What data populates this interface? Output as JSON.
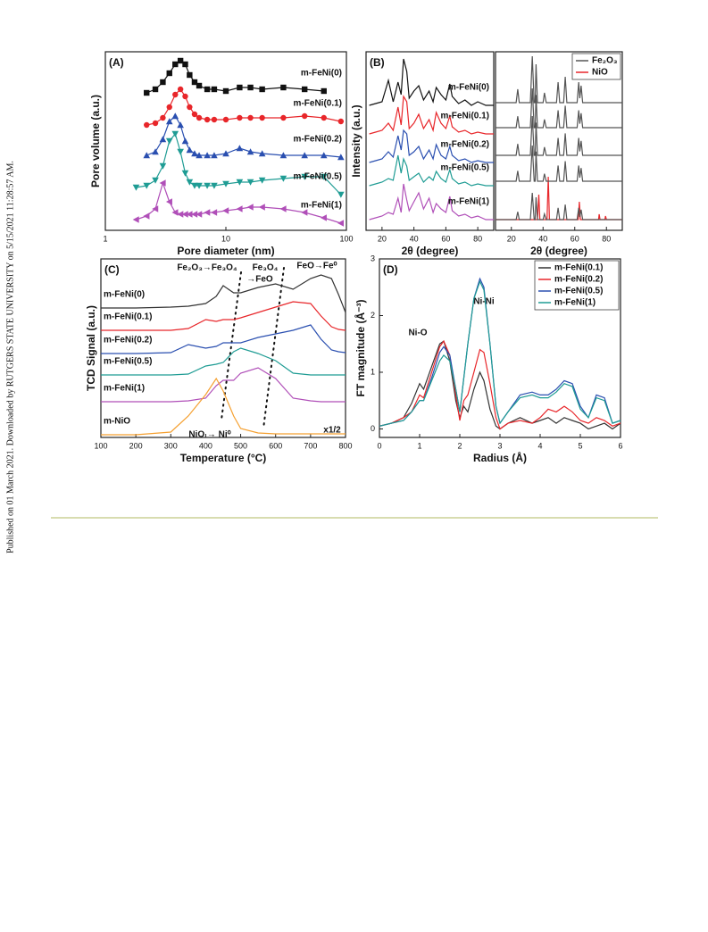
{
  "side_note": "Published on 01 March 2021. Downloaded by RUTGERS STATE UNIVERSITY on 5/15/2021 11:28:57 AM.",
  "chart_data": [
    {
      "type": "line",
      "panel": "(A)",
      "xlabel": "Pore diameter (nm)",
      "ylabel": "Pore volume (a.u.)",
      "xscale": "log",
      "xlim": [
        1,
        100
      ],
      "ylim": [
        0,
        10
      ],
      "xticks": [
        1,
        10,
        100
      ],
      "x": [
        1.8,
        2.2,
        2.6,
        3,
        3.4,
        3.8,
        4.2,
        4.6,
        5,
        5.5,
        6,
        7,
        8,
        10,
        13,
        16,
        20,
        30,
        45,
        65,
        90
      ],
      "series": [
        {
          "name": "m-FeNi(0)",
          "color": "#111111",
          "marker": "square",
          "values": [
            null,
            7.7,
            7.9,
            8.3,
            8.8,
            9.3,
            9.5,
            9.3,
            8.7,
            8.3,
            8.1,
            7.9,
            7.9,
            7.8,
            8.0,
            8.0,
            7.9,
            8.0,
            7.9,
            7.8,
            null
          ]
        },
        {
          "name": "m-FeNi(0.1)",
          "color": "#e8262a",
          "marker": "circle",
          "values": [
            null,
            5.9,
            6.0,
            6.3,
            6.9,
            7.6,
            7.9,
            7.5,
            6.9,
            6.5,
            6.3,
            6.2,
            6.2,
            6.2,
            6.3,
            6.3,
            6.3,
            6.3,
            6.4,
            6.3,
            6.1
          ]
        },
        {
          "name": "m-FeNi(0.2)",
          "color": "#2a4fb0",
          "marker": "triangle",
          "values": [
            null,
            4.2,
            4.4,
            5.1,
            6.1,
            6.4,
            5.9,
            5.0,
            4.5,
            4.3,
            4.2,
            4.2,
            4.2,
            4.3,
            4.6,
            4.4,
            4.3,
            4.2,
            4.2,
            4.2,
            4.1
          ]
        },
        {
          "name": "m-FeNi(0.5)",
          "color": "#1f9c94",
          "marker": "triangle-down",
          "values": [
            2.4,
            2.5,
            2.8,
            3.6,
            5.0,
            5.4,
            4.4,
            3.2,
            2.7,
            2.5,
            2.5,
            2.5,
            2.5,
            2.6,
            2.7,
            2.7,
            2.8,
            2.9,
            3.0,
            3.0,
            2.0
          ]
        },
        {
          "name": "m-FeNi(1)",
          "color": "#b04fb8",
          "marker": "triangle-left",
          "values": [
            0.6,
            0.8,
            1.2,
            2.65,
            1.6,
            1.0,
            0.9,
            0.9,
            0.9,
            0.9,
            0.9,
            1.0,
            1.0,
            1.1,
            1.2,
            1.3,
            1.3,
            1.2,
            1.0,
            0.7,
            0.4
          ]
        }
      ]
    },
    {
      "type": "line",
      "panel": "(B)",
      "xlabel": "2θ (degree)",
      "ylabel": "Intensity (a.u.)",
      "xlim": [
        10,
        90
      ],
      "ylim": [
        0,
        10
      ],
      "xticks": [
        20,
        40,
        60,
        80
      ],
      "x": [
        12,
        16,
        20,
        24,
        27,
        30,
        32,
        33.5,
        35.5,
        37,
        40,
        43,
        46,
        49.5,
        52,
        54,
        57,
        60,
        62.5,
        64,
        68,
        72,
        76,
        80,
        85,
        90
      ],
      "series": [
        {
          "name": "m-FeNi(0)",
          "color": "#111111",
          "values": [
            7.0,
            7.1,
            7.2,
            8.4,
            7.2,
            8.3,
            7.6,
            9.6,
            8.9,
            7.4,
            7.8,
            8.1,
            7.3,
            7.8,
            7.2,
            8.0,
            7.6,
            7.3,
            8.2,
            7.5,
            7.1,
            7.3,
            7.0,
            7.2,
            7.0,
            7.0
          ]
        },
        {
          "name": "m-FeNi(0.1)",
          "color": "#e8262a",
          "values": [
            5.4,
            5.5,
            5.6,
            6.0,
            5.6,
            6.9,
            5.9,
            7.5,
            7.2,
            5.7,
            6.0,
            6.5,
            5.7,
            6.2,
            5.6,
            6.6,
            6.0,
            5.7,
            6.4,
            5.8,
            5.5,
            5.6,
            5.4,
            5.5,
            5.4,
            5.4
          ]
        },
        {
          "name": "m-FeNi(0.2)",
          "color": "#2a4fb0",
          "values": [
            3.8,
            3.9,
            4.0,
            4.4,
            4.1,
            5.3,
            4.5,
            5.6,
            5.4,
            4.2,
            4.4,
            4.7,
            4.0,
            4.5,
            4.0,
            4.8,
            4.2,
            4.0,
            4.7,
            4.2,
            3.9,
            4.0,
            3.8,
            3.9,
            3.8,
            3.8
          ]
        },
        {
          "name": "m-FeNi(0.5)",
          "color": "#1f9c94",
          "values": [
            2.5,
            2.6,
            2.7,
            2.9,
            2.8,
            4.2,
            3.2,
            4.0,
            3.6,
            2.8,
            3.0,
            3.2,
            2.7,
            3.0,
            2.8,
            3.3,
            2.9,
            2.7,
            3.4,
            2.9,
            2.6,
            2.7,
            2.5,
            2.6,
            2.5,
            2.5
          ]
        },
        {
          "name": "m-FeNi(1)",
          "color": "#b04fb8",
          "values": [
            0.6,
            0.7,
            0.8,
            1.0,
            0.9,
            1.8,
            1.0,
            2.6,
            1.7,
            1.1,
            1.6,
            2.1,
            1.2,
            1.8,
            1.0,
            1.5,
            1.2,
            1.0,
            1.9,
            1.1,
            0.8,
            0.9,
            0.7,
            0.8,
            0.6,
            0.6
          ]
        }
      ]
    },
    {
      "type": "line",
      "xlabel": "2θ (degree)",
      "xlim": [
        10,
        90
      ],
      "ylim": [
        0,
        10
      ],
      "xticks": [
        20,
        40,
        60,
        80
      ],
      "x": [
        10,
        23,
        24,
        25,
        32,
        33.2,
        34.4,
        35,
        35.6,
        36.5,
        40,
        40.9,
        42,
        48.5,
        49.5,
        50.5,
        53,
        54,
        55,
        61.5,
        62.5,
        63.2,
        64,
        65,
        90
      ],
      "series": [
        {
          "name": "Fe₂O₃",
          "color": "#555555",
          "values": [
            7.15,
            7.15,
            7.9,
            7.15,
            7.15,
            9.75,
            7.15,
            7.15,
            9.3,
            7.15,
            7.15,
            7.7,
            7.15,
            7.15,
            8.3,
            7.15,
            7.15,
            8.6,
            7.15,
            7.15,
            8.3,
            7.4,
            8.1,
            7.15,
            7.15
          ]
        },
        {
          "name": "NiO",
          "color": "#e8262a",
          "x": [
            10,
            36.5,
            37.3,
            38,
            42.5,
            43.3,
            44,
            62.2,
            62.9,
            63.6,
            75,
            75.4,
            76,
            79,
            79.4,
            80,
            90
          ],
          "values": [
            0.6,
            0.6,
            2.0,
            0.6,
            0.6,
            3.0,
            0.6,
            0.6,
            1.6,
            0.6,
            0.6,
            0.9,
            0.6,
            0.6,
            0.8,
            0.6,
            0.6
          ]
        },
        {
          "color": "#555555",
          "values": [
            5.75,
            5.75,
            6.39,
            5.75,
            5.75,
            7.95,
            5.75,
            5.75,
            7.58,
            5.75,
            5.75,
            6.21,
            5.75,
            5.75,
            6.72,
            5.75,
            5.75,
            6.98,
            5.75,
            5.75,
            6.72,
            5.97,
            6.56,
            5.75,
            5.75
          ]
        },
        {
          "color": "#555555",
          "values": [
            4.2,
            4.2,
            4.84,
            4.2,
            4.2,
            6.4,
            4.2,
            4.2,
            6.03,
            4.2,
            4.2,
            4.66,
            4.2,
            4.2,
            5.17,
            4.2,
            4.2,
            5.43,
            4.2,
            4.2,
            5.17,
            4.42,
            5.01,
            4.2,
            4.2
          ]
        },
        {
          "color": "#555555",
          "values": [
            2.75,
            2.75,
            3.33,
            2.75,
            2.75,
            4.75,
            2.75,
            2.75,
            4.41,
            2.75,
            2.75,
            3.17,
            2.75,
            2.75,
            3.63,
            2.75,
            2.75,
            3.87,
            2.75,
            2.75,
            3.63,
            2.95,
            3.49,
            2.75,
            2.75
          ]
        },
        {
          "color": "#555555",
          "values": [
            0.6,
            0.6,
            1.04,
            0.6,
            0.6,
            2.1,
            0.6,
            0.6,
            1.85,
            0.6,
            0.6,
            0.92,
            0.6,
            0.6,
            1.26,
            0.6,
            0.6,
            1.44,
            0.6,
            0.6,
            1.26,
            0.75,
            1.16,
            0.6,
            0.6
          ]
        }
      ]
    },
    {
      "type": "line",
      "panel": "(C)",
      "xlabel": "Temperature (°C)",
      "ylabel": "TCD Signal (a.u.)",
      "xlim": [
        100,
        800
      ],
      "ylim": [
        0,
        10
      ],
      "xticks": [
        100,
        200,
        300,
        400,
        500,
        600,
        700,
        800
      ],
      "annotations": [
        "Fe₂O₃→Fe₃O₄",
        "Fe₃O₄",
        "→FeO",
        "FeO→Fe⁰",
        "NiO → Ni⁰",
        "x1/2"
      ],
      "x": [
        100,
        200,
        300,
        350,
        400,
        430,
        450,
        480,
        500,
        550,
        600,
        650,
        700,
        730,
        760,
        780,
        800
      ],
      "series": [
        {
          "name": "m-FeNi(0)",
          "color": "#333333",
          "values": [
            7.25,
            7.25,
            7.3,
            7.35,
            7.5,
            7.9,
            8.5,
            8.1,
            8.1,
            8.4,
            8.6,
            8.3,
            8.9,
            9.1,
            8.9,
            8.0,
            7.0
          ]
        },
        {
          "name": "m-FeNi(0.1)",
          "color": "#e8262a",
          "values": [
            6.0,
            6.0,
            6.0,
            6.1,
            6.6,
            6.5,
            6.6,
            6.6,
            6.7,
            7.0,
            7.3,
            7.6,
            7.5,
            6.8,
            6.2,
            6.05,
            6.0
          ]
        },
        {
          "name": "m-FeNi(0.2)",
          "color": "#2a4fb0",
          "values": [
            4.7,
            4.7,
            4.75,
            5.2,
            5.0,
            5.1,
            5.3,
            5.3,
            5.3,
            5.6,
            5.8,
            6.0,
            6.3,
            5.5,
            4.9,
            4.8,
            4.75
          ]
        },
        {
          "name": "m-FeNi(0.5)",
          "color": "#1f9c94",
          "values": [
            3.5,
            3.5,
            3.5,
            3.55,
            4.0,
            4.1,
            4.2,
            4.8,
            5.0,
            4.7,
            4.3,
            3.6,
            3.5,
            3.5,
            3.5,
            3.5,
            3.5
          ]
        },
        {
          "name": "m-FeNi(1)",
          "color": "#b04fb8",
          "values": [
            2.0,
            2.0,
            2.0,
            2.05,
            2.2,
            2.9,
            3.2,
            3.2,
            3.6,
            3.9,
            3.3,
            2.2,
            2.05,
            2.0,
            2.0,
            2.0,
            2.0
          ]
        },
        {
          "name": "m-NiO",
          "color": "#f5a030",
          "values": [
            0.15,
            0.15,
            0.3,
            1.2,
            2.4,
            3.3,
            2.6,
            1.2,
            0.5,
            0.25,
            0.2,
            0.2,
            0.2,
            0.2,
            0.2,
            0.2,
            0.2
          ]
        }
      ]
    },
    {
      "type": "line",
      "panel": "(D)",
      "xlabel": "Radius (Å)",
      "ylabel": "FT magnitude (Å⁻³)",
      "xlim": [
        0,
        6
      ],
      "ylim": [
        -0.15,
        3
      ],
      "xticks": [
        0,
        1,
        2,
        3,
        4,
        5,
        6
      ],
      "yticks": [
        0,
        1,
        2,
        3
      ],
      "annotations": [
        "Ni-O",
        "Ni-Ni"
      ],
      "x": [
        0,
        0.3,
        0.6,
        0.8,
        1.0,
        1.1,
        1.3,
        1.5,
        1.6,
        1.75,
        1.9,
        2.0,
        2.1,
        2.2,
        2.35,
        2.5,
        2.6,
        2.75,
        2.9,
        3.0,
        3.2,
        3.5,
        3.8,
        4.0,
        4.2,
        4.4,
        4.6,
        4.8,
        5.0,
        5.2,
        5.4,
        5.6,
        5.8,
        6.0
      ],
      "series": [
        {
          "name": "m-FeNi(0.1)",
          "color": "#333333",
          "values": [
            0.05,
            0.1,
            0.2,
            0.45,
            0.8,
            0.7,
            1.1,
            1.5,
            1.55,
            1.2,
            0.5,
            0.2,
            0.4,
            0.3,
            0.7,
            1.0,
            0.85,
            0.35,
            0.05,
            0.0,
            0.1,
            0.2,
            0.1,
            0.15,
            0.2,
            0.1,
            0.2,
            0.15,
            0.1,
            0.0,
            0.05,
            0.1,
            0.0,
            0.1
          ]
        },
        {
          "name": "m-FeNi(0.2)",
          "color": "#e8262a",
          "values": [
            0.05,
            0.1,
            0.2,
            0.3,
            0.6,
            0.55,
            1.0,
            1.45,
            1.55,
            1.3,
            0.6,
            0.15,
            0.5,
            0.6,
            1.0,
            1.4,
            1.35,
            0.8,
            0.2,
            0.0,
            0.1,
            0.15,
            0.1,
            0.2,
            0.35,
            0.3,
            0.4,
            0.3,
            0.15,
            0.1,
            0.2,
            0.15,
            0.05,
            0.1
          ]
        },
        {
          "name": "m-FeNi(0.5)",
          "color": "#2a4fb0",
          "values": [
            0.05,
            0.1,
            0.15,
            0.3,
            0.5,
            0.5,
            0.9,
            1.35,
            1.45,
            1.3,
            0.7,
            0.3,
            0.9,
            1.5,
            2.3,
            2.65,
            2.5,
            1.5,
            0.4,
            0.1,
            0.3,
            0.6,
            0.65,
            0.6,
            0.6,
            0.7,
            0.85,
            0.8,
            0.4,
            0.2,
            0.6,
            0.55,
            0.1,
            0.15
          ]
        },
        {
          "name": "m-FeNi(1)",
          "color": "#1f9c94",
          "values": [
            0.05,
            0.1,
            0.15,
            0.3,
            0.5,
            0.5,
            0.85,
            1.2,
            1.3,
            1.2,
            0.7,
            0.3,
            0.9,
            1.5,
            2.3,
            2.6,
            2.45,
            1.5,
            0.4,
            0.1,
            0.3,
            0.55,
            0.6,
            0.55,
            0.55,
            0.65,
            0.8,
            0.75,
            0.35,
            0.2,
            0.55,
            0.5,
            0.1,
            0.15
          ]
        }
      ]
    }
  ]
}
